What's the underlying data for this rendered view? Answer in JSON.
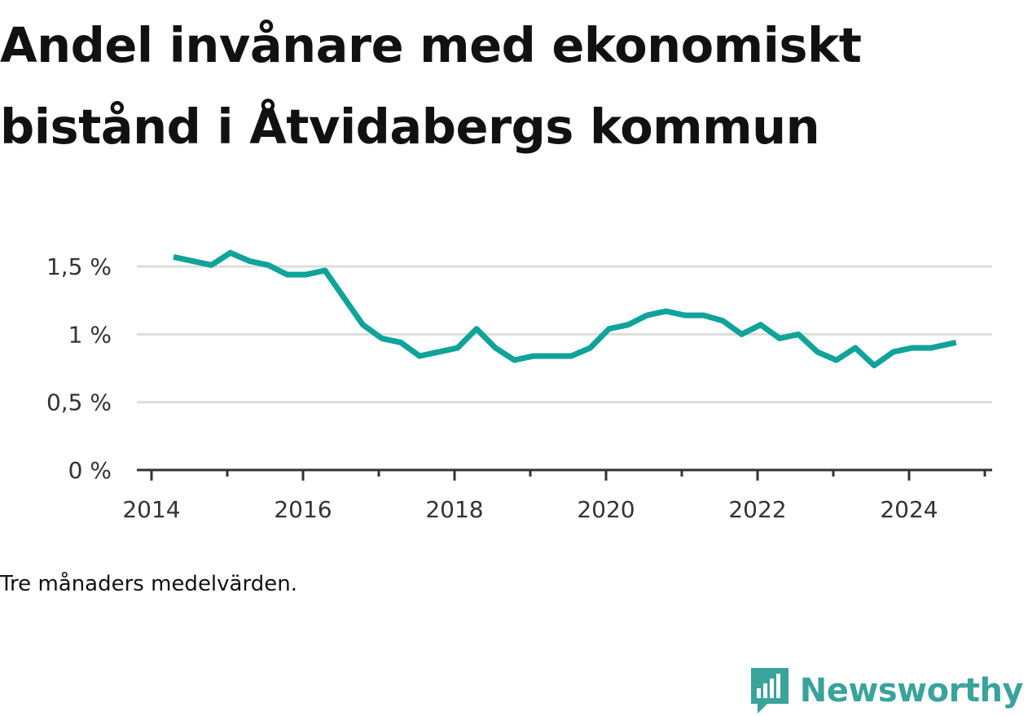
{
  "title": "Andel invånare med ekonomiskt bistånd i Åtvidabergs kommun",
  "caption": "Tre månaders medelvärden.",
  "brand": {
    "name": "Newsworthy",
    "icon": "bar-chart-logo-icon",
    "color": "#3aa39b"
  },
  "chart_data": {
    "type": "line",
    "title": "Andel invånare med ekonomiskt bistånd i Åtvidabergs kommun",
    "xlabel": "",
    "ylabel": "",
    "xlim": [
      2014,
      2025.1
    ],
    "ylim": [
      0,
      1.75
    ],
    "x_ticks": [
      {
        "value": 2014,
        "label": "2014"
      },
      {
        "value": 2016,
        "label": "2016"
      },
      {
        "value": 2018,
        "label": "2018"
      },
      {
        "value": 2020,
        "label": "2020"
      },
      {
        "value": 2022,
        "label": "2022"
      },
      {
        "value": 2024,
        "label": "2024"
      }
    ],
    "y_ticks": [
      {
        "value": 0,
        "label": "0 %"
      },
      {
        "value": 0.5,
        "label": "0,5 %"
      },
      {
        "value": 1.0,
        "label": "1 %"
      },
      {
        "value": 1.5,
        "label": "1,5 %"
      }
    ],
    "grid": true,
    "series": [
      {
        "color": "#0fa39a",
        "x": [
          2014.29,
          2014.54,
          2014.79,
          2015.04,
          2015.29,
          2015.54,
          2015.79,
          2016.04,
          2016.29,
          2016.54,
          2016.79,
          2017.04,
          2017.29,
          2017.54,
          2017.79,
          2018.04,
          2018.29,
          2018.54,
          2018.79,
          2019.04,
          2019.29,
          2019.54,
          2019.79,
          2020.04,
          2020.29,
          2020.54,
          2020.79,
          2021.04,
          2021.29,
          2021.54,
          2021.79,
          2022.04,
          2022.29,
          2022.54,
          2022.79,
          2023.04,
          2023.29,
          2023.54,
          2023.79,
          2024.04,
          2024.29,
          2024.62
        ],
        "y": [
          1.57,
          1.54,
          1.51,
          1.6,
          1.54,
          1.51,
          1.44,
          1.44,
          1.47,
          1.27,
          1.07,
          0.97,
          0.94,
          0.84,
          0.87,
          0.9,
          1.04,
          0.9,
          0.81,
          0.84,
          0.84,
          0.84,
          0.9,
          1.04,
          1.07,
          1.14,
          1.17,
          1.14,
          1.14,
          1.1,
          1.0,
          1.07,
          0.97,
          1.0,
          0.87,
          0.81,
          0.9,
          0.77,
          0.87,
          0.9,
          0.9,
          0.94
        ]
      }
    ]
  }
}
